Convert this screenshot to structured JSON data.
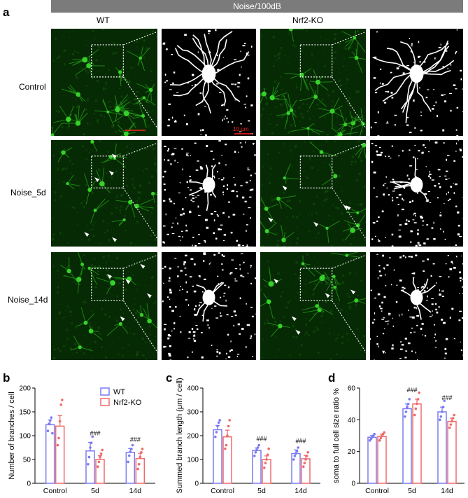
{
  "banner": "Noise/100dB",
  "panel_letters": {
    "a": "a",
    "b": "b",
    "c": "c",
    "d": "d"
  },
  "columns": {
    "wt": "WT",
    "ko": "Nrf2-KO"
  },
  "rows": {
    "control": "Control",
    "noise5": "Noise_5d",
    "noise14": "Noise_14d"
  },
  "scale_bars": {
    "micrograph": "10 μm",
    "binary": "10 μm"
  },
  "colors": {
    "wt": "#7b7bf2",
    "ko": "#f06a6a",
    "micrograph_green": "#1f8f14"
  },
  "chart_data": [
    {
      "type": "bar",
      "panel": "b",
      "categories": [
        "Control",
        "5d",
        "14d"
      ],
      "ylabel": "Number of branches / cell",
      "ylim": [
        0,
        200
      ],
      "yticks": [
        0,
        50,
        100,
        150,
        200
      ],
      "legend": "top-right",
      "series": [
        {
          "name": "WT",
          "values": [
            123,
            68,
            65
          ],
          "sem": [
            10,
            18,
            8
          ],
          "points": [
            [
              110,
              125,
              132,
              138,
              105
            ],
            [
              40,
              55,
              75,
              85,
              98
            ],
            [
              45,
              58,
              66,
              72,
              80
            ]
          ]
        },
        {
          "name": "Nrf2-KO",
          "values": [
            120,
            50,
            52
          ],
          "sem": [
            22,
            8,
            11
          ],
          "points": [
            [
              80,
              95,
              130,
              165,
              175
            ],
            [
              35,
              45,
              55,
              62,
              70
            ],
            [
              30,
              40,
              55,
              65,
              72
            ]
          ]
        }
      ],
      "annotations": [
        {
          "category": "5d",
          "text": "###"
        },
        {
          "category": "14d",
          "text": "###"
        }
      ]
    },
    {
      "type": "bar",
      "panel": "c",
      "categories": [
        "Control",
        "5d",
        "14d"
      ],
      "ylabel": "Summed branch length (μm / cell)",
      "ylim": [
        0,
        400
      ],
      "yticks": [
        0,
        100,
        200,
        300,
        400
      ],
      "series": [
        {
          "name": "WT",
          "values": [
            225,
            138,
            125
          ],
          "sem": [
            18,
            10,
            15
          ],
          "points": [
            [
              195,
              215,
              240,
              255,
              265
            ],
            [
              115,
              130,
              140,
              150,
              160
            ],
            [
              100,
              115,
              125,
              135,
              150
            ]
          ]
        },
        {
          "name": "Nrf2-KO",
          "values": [
            195,
            100,
            103
          ],
          "sem": [
            28,
            15,
            14
          ],
          "points": [
            [
              145,
              160,
              200,
              240,
              265
            ],
            [
              65,
              85,
              100,
              120,
              145
            ],
            [
              70,
              85,
              100,
              115,
              130
            ]
          ]
        }
      ],
      "annotations": [
        {
          "category": "5d",
          "text": "###"
        },
        {
          "category": "14d",
          "text": "###"
        }
      ]
    },
    {
      "type": "bar",
      "panel": "d",
      "categories": [
        "Control",
        "5d",
        "14d"
      ],
      "ylabel": "soma to full cell size ratio %",
      "ylim": [
        0,
        60
      ],
      "yticks": [
        0,
        20,
        40,
        60
      ],
      "series": [
        {
          "name": "WT",
          "values": [
            29,
            47,
            45
          ],
          "sem": [
            1.2,
            3,
            3
          ],
          "points": [
            [
              27,
              28,
              29,
              30,
              31
            ],
            [
              42,
              45,
              48,
              50,
              53
            ],
            [
              40,
              42,
              45,
              48,
              52
            ]
          ]
        },
        {
          "name": "Nrf2-KO",
          "values": [
            29.5,
            50,
            39
          ],
          "sem": [
            1.5,
            3,
            2
          ],
          "points": [
            [
              27,
              28.5,
              30,
              31,
              32
            ],
            [
              43,
              47,
              50,
              53,
              57
            ],
            [
              35,
              37,
              39,
              41,
              43
            ]
          ]
        }
      ],
      "annotations": [
        {
          "category": "5d",
          "text": "###"
        },
        {
          "category": "14d",
          "text": "###"
        }
      ]
    }
  ]
}
